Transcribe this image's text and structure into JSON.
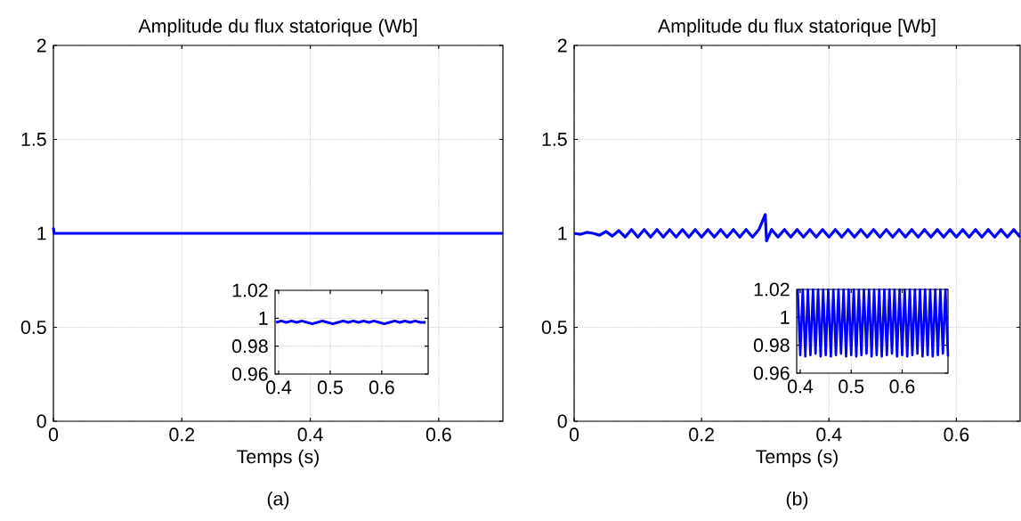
{
  "chart_data": [
    {
      "type": "line",
      "title": "Amplitude du flux statorique (Wb]",
      "xlabel": "Temps (s)",
      "annotations": [
        "(a)"
      ],
      "xlim": [
        0,
        0.7
      ],
      "ylim": [
        0,
        2
      ],
      "xticks": [
        0,
        0.2,
        0.4,
        0.6
      ],
      "yticks": [
        0,
        0.5,
        1,
        1.5,
        2
      ],
      "grid": true,
      "x": [
        0,
        0.001,
        0.002,
        0.1,
        0.2,
        0.3,
        0.4,
        0.5,
        0.6,
        0.7
      ],
      "series": [
        {
          "color": "#0000ff",
          "values": [
            1.03,
            1.0,
            1.0,
            1.0,
            1.0,
            1.0,
            1.0,
            1.0,
            1.0,
            1.0
          ]
        }
      ]
    },
    {
      "type": "line",
      "xlim": [
        0.393,
        0.69
      ],
      "ylim": [
        0.96,
        1.02
      ],
      "xticks": [
        0.4,
        0.5,
        0.6
      ],
      "yticks": [
        0.96,
        0.98,
        1,
        1.02
      ],
      "grid": true,
      "x": [
        0.395,
        0.405,
        0.415,
        0.425,
        0.435,
        0.445,
        0.455,
        0.465,
        0.475,
        0.485,
        0.495,
        0.505,
        0.515,
        0.525,
        0.535,
        0.545,
        0.555,
        0.565,
        0.575,
        0.585,
        0.595,
        0.605,
        0.615,
        0.625,
        0.635,
        0.645,
        0.655,
        0.665,
        0.675,
        0.685
      ],
      "series": [
        {
          "color": "#0000ff",
          "values": [
            0.997,
            0.998,
            0.997,
            0.998,
            0.997,
            0.998,
            0.997,
            0.996,
            0.997,
            0.998,
            0.997,
            0.996,
            0.997,
            0.998,
            0.997,
            0.998,
            0.997,
            0.998,
            0.997,
            0.998,
            0.997,
            0.996,
            0.997,
            0.998,
            0.997,
            0.998,
            0.997,
            0.998,
            0.997,
            0.997
          ]
        }
      ]
    },
    {
      "type": "line",
      "title": "Amplitude du flux statorique [Wb]",
      "xlabel": "Temps (s)",
      "annotations": [
        "(b)"
      ],
      "xlim": [
        0,
        0.7
      ],
      "ylim": [
        0,
        2
      ],
      "xticks": [
        0,
        0.2,
        0.4,
        0.6
      ],
      "yticks": [
        0,
        0.5,
        1,
        1.5,
        2
      ],
      "grid": true,
      "x": [
        0,
        0.01,
        0.02,
        0.03,
        0.04,
        0.05,
        0.06,
        0.07,
        0.08,
        0.09,
        0.1,
        0.11,
        0.12,
        0.13,
        0.14,
        0.15,
        0.16,
        0.17,
        0.18,
        0.19,
        0.2,
        0.21,
        0.22,
        0.23,
        0.24,
        0.25,
        0.26,
        0.27,
        0.28,
        0.29,
        0.3,
        0.302,
        0.31,
        0.32,
        0.33,
        0.34,
        0.35,
        0.36,
        0.37,
        0.38,
        0.39,
        0.4,
        0.41,
        0.42,
        0.43,
        0.44,
        0.45,
        0.46,
        0.47,
        0.48,
        0.49,
        0.5,
        0.51,
        0.52,
        0.53,
        0.54,
        0.55,
        0.56,
        0.57,
        0.58,
        0.59,
        0.6,
        0.61,
        0.62,
        0.63,
        0.64,
        0.65,
        0.66,
        0.67,
        0.68,
        0.69,
        0.7
      ],
      "series": [
        {
          "color": "#0000ff",
          "values": [
            1.0,
            0.995,
            1.005,
            1.0,
            0.99,
            1.01,
            0.985,
            1.015,
            0.98,
            1.02,
            0.98,
            1.02,
            0.98,
            1.02,
            0.98,
            1.02,
            0.98,
            1.02,
            0.98,
            1.02,
            0.98,
            1.02,
            0.98,
            1.02,
            0.98,
            1.02,
            0.98,
            1.02,
            0.98,
            1.02,
            1.1,
            0.96,
            1.02,
            0.98,
            1.02,
            0.98,
            1.02,
            0.98,
            1.02,
            0.98,
            1.02,
            0.98,
            1.02,
            0.98,
            1.02,
            0.98,
            1.02,
            0.98,
            1.02,
            0.98,
            1.02,
            0.98,
            1.02,
            0.98,
            1.02,
            0.98,
            1.02,
            0.98,
            1.02,
            0.98,
            1.02,
            0.98,
            1.02,
            0.98,
            1.02,
            0.98,
            1.02,
            0.98,
            1.02,
            0.98,
            1.02,
            0.98
          ]
        }
      ]
    },
    {
      "type": "line",
      "xlim": [
        0.393,
        0.69
      ],
      "ylim": [
        0.96,
        1.02
      ],
      "xticks": [
        0.4,
        0.5,
        0.6
      ],
      "yticks": [
        0.96,
        0.98,
        1,
        1.02
      ],
      "grid": true,
      "x": [
        0.395,
        0.4,
        0.405,
        0.41,
        0.415,
        0.42,
        0.425,
        0.43,
        0.435,
        0.44,
        0.445,
        0.45,
        0.455,
        0.46,
        0.465,
        0.47,
        0.475,
        0.48,
        0.485,
        0.49,
        0.495,
        0.5,
        0.505,
        0.51,
        0.515,
        0.52,
        0.525,
        0.53,
        0.535,
        0.54,
        0.545,
        0.55,
        0.555,
        0.56,
        0.565,
        0.57,
        0.575,
        0.58,
        0.585,
        0.59,
        0.595,
        0.6,
        0.605,
        0.61,
        0.615,
        0.62,
        0.625,
        0.63,
        0.635,
        0.64,
        0.645,
        0.65,
        0.655,
        0.66,
        0.665,
        0.67,
        0.675,
        0.68,
        0.685,
        0.69
      ],
      "series": [
        {
          "color": "#0000ff",
          "values": [
            1.02,
            0.973,
            1.02,
            0.972,
            1.02,
            0.973,
            1.02,
            0.974,
            1.02,
            0.972,
            1.02,
            0.973,
            1.02,
            0.972,
            1.02,
            0.973,
            1.02,
            0.974,
            1.02,
            0.972,
            1.02,
            0.973,
            1.02,
            0.972,
            1.02,
            0.973,
            1.02,
            0.974,
            1.02,
            0.972,
            1.02,
            0.973,
            1.02,
            0.972,
            1.02,
            0.973,
            1.02,
            0.974,
            1.02,
            0.972,
            1.02,
            0.973,
            1.02,
            0.972,
            1.02,
            0.973,
            1.02,
            0.974,
            1.02,
            0.972,
            1.02,
            0.973,
            1.02,
            0.972,
            1.02,
            0.973,
            1.02,
            0.974,
            1.02,
            0.972
          ]
        }
      ]
    }
  ]
}
